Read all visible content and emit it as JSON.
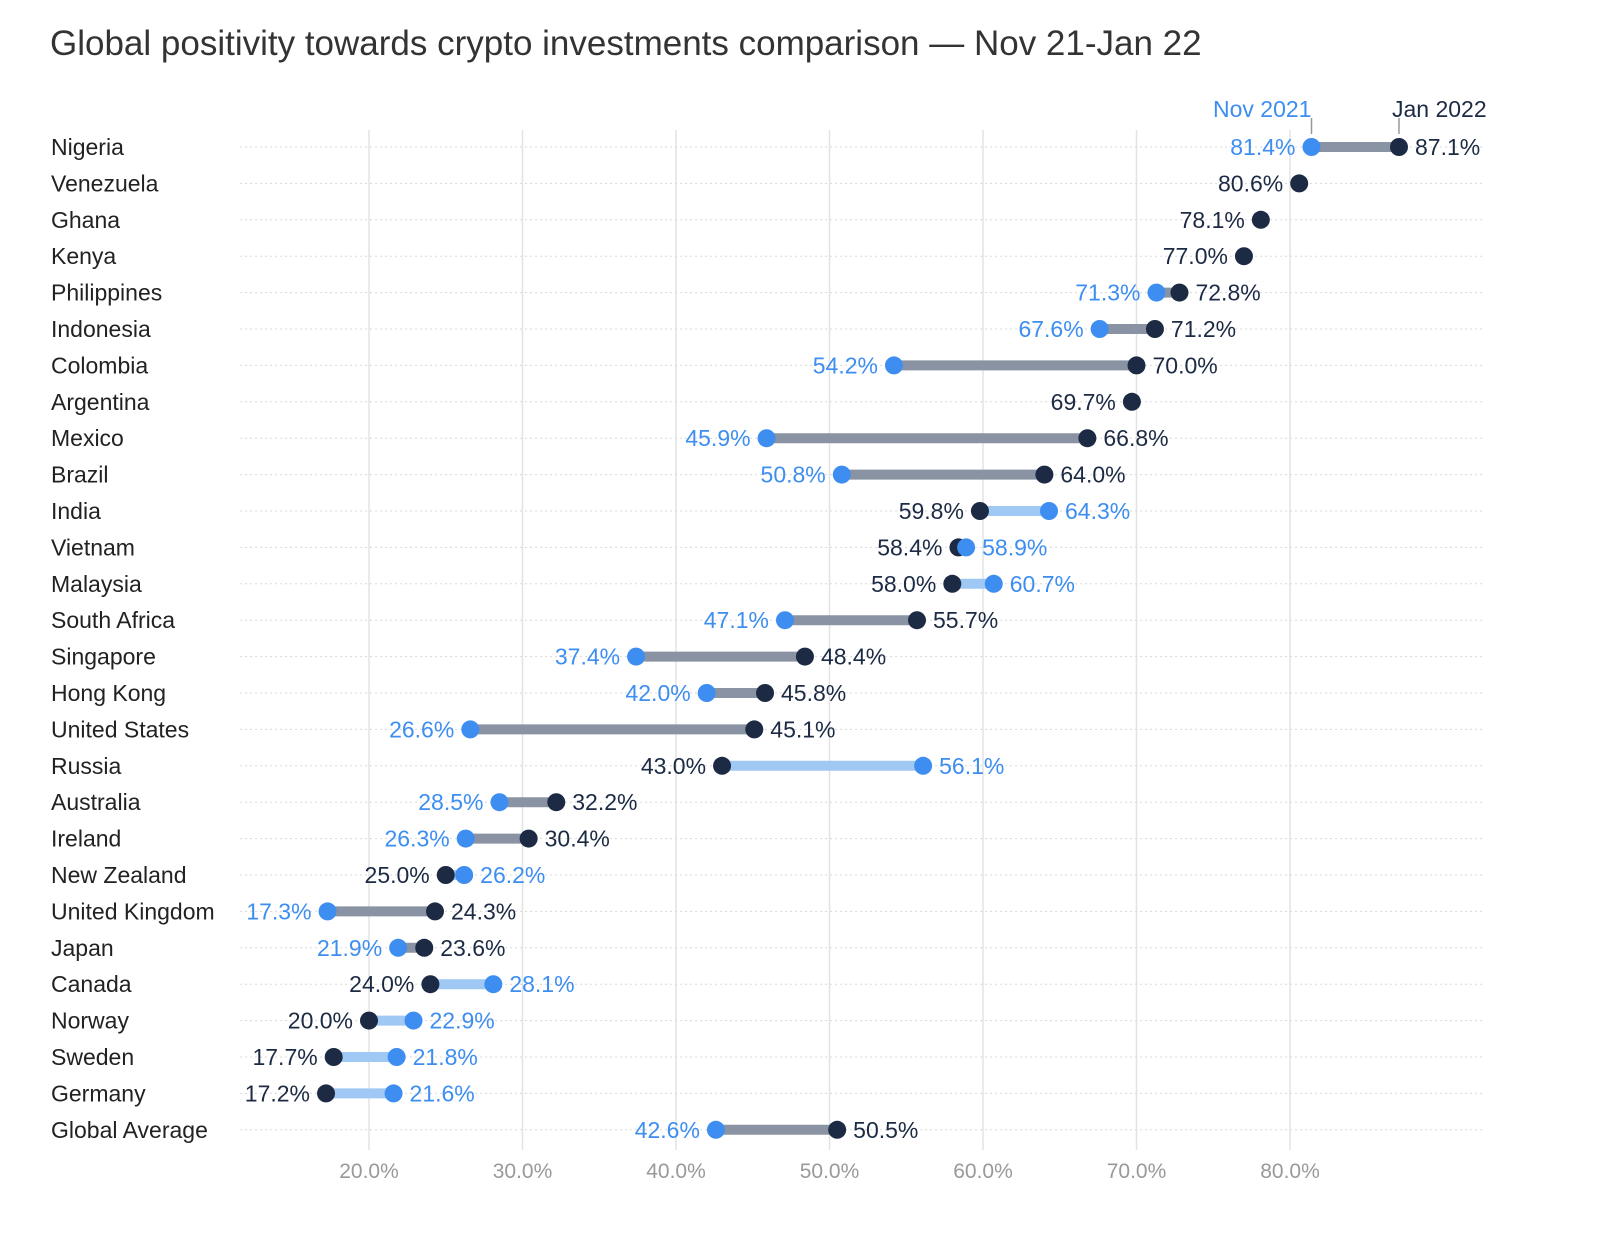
{
  "chart_data": {
    "type": "dumbbell",
    "title": "Global positivity towards crypto investments comparison — Nov 21-Jan 22",
    "series_names": [
      "Nov 2021",
      "Jan 2022"
    ],
    "x_ticks": [
      "20.0%",
      "30.0%",
      "40.0%",
      "50.0%",
      "60.0%",
      "70.0%",
      "80.0%"
    ],
    "x_tick_values": [
      20,
      30,
      40,
      50,
      60,
      70,
      80
    ],
    "xlim": [
      11.6,
      92.7
    ],
    "grid": true,
    "colors": {
      "nov": "#3d8ef0",
      "jan": "#1c2a44",
      "increase_bar": "#8a93a3",
      "decrease_bar": "#9fc8f5",
      "tick": "#999999"
    },
    "rows": [
      {
        "country": "Nigeria",
        "nov": 81.4,
        "jan": 87.1
      },
      {
        "country": "Venezuela",
        "nov": null,
        "jan": 80.6
      },
      {
        "country": "Ghana",
        "nov": null,
        "jan": 78.1
      },
      {
        "country": "Kenya",
        "nov": null,
        "jan": 77.0
      },
      {
        "country": "Philippines",
        "nov": 71.3,
        "jan": 72.8
      },
      {
        "country": "Indonesia",
        "nov": 67.6,
        "jan": 71.2
      },
      {
        "country": "Colombia",
        "nov": 54.2,
        "jan": 70.0
      },
      {
        "country": "Argentina",
        "nov": null,
        "jan": 69.7
      },
      {
        "country": "Mexico",
        "nov": 45.9,
        "jan": 66.8
      },
      {
        "country": "Brazil",
        "nov": 50.8,
        "jan": 64.0
      },
      {
        "country": "India",
        "nov": 64.3,
        "jan": 59.8
      },
      {
        "country": "Vietnam",
        "nov": 58.9,
        "jan": 58.4
      },
      {
        "country": "Malaysia",
        "nov": 60.7,
        "jan": 58.0
      },
      {
        "country": "South Africa",
        "nov": 47.1,
        "jan": 55.7
      },
      {
        "country": "Singapore",
        "nov": 37.4,
        "jan": 48.4
      },
      {
        "country": "Hong Kong",
        "nov": 42.0,
        "jan": 45.8
      },
      {
        "country": "United States",
        "nov": 26.6,
        "jan": 45.1
      },
      {
        "country": "Russia",
        "nov": 56.1,
        "jan": 43.0
      },
      {
        "country": "Australia",
        "nov": 28.5,
        "jan": 32.2
      },
      {
        "country": "Ireland",
        "nov": 26.3,
        "jan": 30.4
      },
      {
        "country": "New Zealand",
        "nov": 26.2,
        "jan": 25.0
      },
      {
        "country": "United Kingdom",
        "nov": 17.3,
        "jan": 24.3
      },
      {
        "country": "Japan",
        "nov": 21.9,
        "jan": 23.6
      },
      {
        "country": "Canada",
        "nov": 28.1,
        "jan": 24.0
      },
      {
        "country": "Norway",
        "nov": 22.9,
        "jan": 20.0
      },
      {
        "country": "Sweden",
        "nov": 21.8,
        "jan": 17.7
      },
      {
        "country": "Germany",
        "nov": 21.6,
        "jan": 17.2
      },
      {
        "country": "Global Average",
        "nov": 42.6,
        "jan": 50.5
      }
    ]
  }
}
